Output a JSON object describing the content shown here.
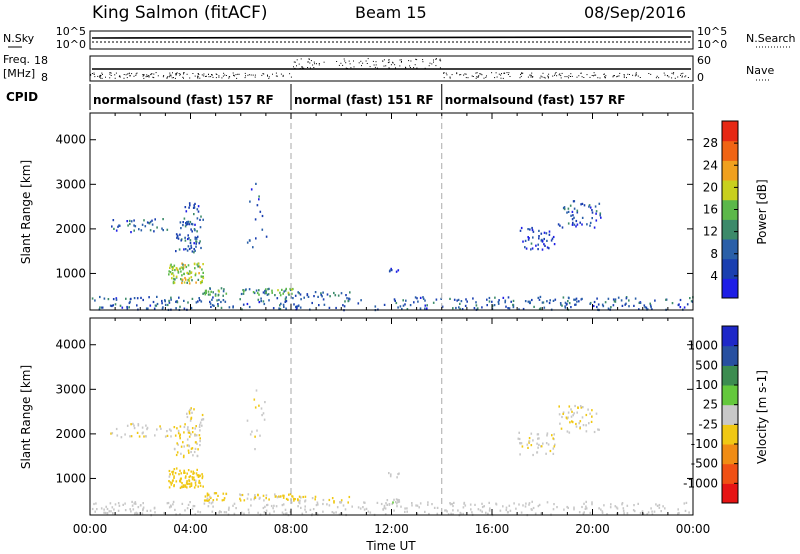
{
  "header": {
    "station": "King Salmon (fitACF)",
    "beam": "Beam 15",
    "date": "08/Sep/2016"
  },
  "status_panel": {
    "left_labels": {
      "nsky": "N.Sky",
      "freq_line1": "Freq.",
      "freq_line2": "[MHz]",
      "cpid": "CPID"
    },
    "right_labels": {
      "nsearch": "N.Search",
      "nave": "Nave"
    },
    "noise_ticks": {
      "top": "10^5",
      "bottom": "10^0"
    },
    "freq_ticks": {
      "top": "18",
      "bottom": "8"
    },
    "nave_ticks": {
      "top": "60",
      "bottom": "0"
    },
    "cpid_segments": [
      {
        "label": "normalsound (fast) 157 RF",
        "start_h": 0,
        "end_h": 8
      },
      {
        "label": "normal (fast) 151 RF",
        "start_h": 8,
        "end_h": 14
      },
      {
        "label": "normalsound (fast) 157 RF",
        "start_h": 14,
        "end_h": 24
      }
    ]
  },
  "chart_data": [
    {
      "type": "heatmap",
      "title": "",
      "xlabel": "",
      "ylabel": "Slant Range [km]",
      "xlim_hours": [
        0,
        24
      ],
      "ylim": [
        180,
        4600
      ],
      "y_ticks": [
        "1000",
        "2000",
        "3000",
        "4000"
      ],
      "mode_change_lines_h": [
        8,
        14
      ],
      "colorbar": {
        "label": "Power [dB]",
        "range": [
          0,
          32
        ],
        "ticks": [
          "4",
          "8",
          "12",
          "16",
          "20",
          "24",
          "28"
        ],
        "colors": [
          "#1e1ee6",
          "#1a3fb0",
          "#2a5fa8",
          "#3c8a6a",
          "#5cb84a",
          "#c8d01e",
          "#f0a01e",
          "#f06414",
          "#e62814"
        ]
      },
      "regions": [
        {
          "t0": 3.1,
          "t1": 4.5,
          "r0": 800,
          "r1": 1250,
          "value": 18,
          "density": 0.85
        },
        {
          "t0": 3.3,
          "t1": 4.4,
          "r0": 1500,
          "r1": 2200,
          "value": 8,
          "density": 0.45
        },
        {
          "t0": 3.7,
          "t1": 4.5,
          "r0": 2100,
          "r1": 2600,
          "value": 7,
          "density": 0.35
        },
        {
          "t0": 0.8,
          "t1": 3.2,
          "r0": 1950,
          "r1": 2250,
          "value": 8,
          "density": 0.3
        },
        {
          "t0": 4.4,
          "t1": 5.4,
          "r0": 520,
          "r1": 700,
          "value": 14,
          "density": 0.8
        },
        {
          "t0": 5.9,
          "t1": 7.1,
          "r0": 520,
          "r1": 680,
          "value": 12,
          "density": 0.75
        },
        {
          "t0": 7.2,
          "t1": 8.1,
          "r0": 520,
          "r1": 680,
          "value": 14,
          "density": 0.8
        },
        {
          "t0": 8.1,
          "t1": 10.4,
          "r0": 480,
          "r1": 620,
          "value": 10,
          "density": 0.4
        },
        {
          "t0": 0,
          "t1": 24,
          "r0": 200,
          "r1": 500,
          "value": 8,
          "density": 0.28
        },
        {
          "t0": 11.8,
          "t1": 12.4,
          "r0": 1050,
          "r1": 1150,
          "value": 6,
          "density": 0.6
        },
        {
          "t0": 17.0,
          "t1": 18.5,
          "r0": 1550,
          "r1": 2050,
          "value": 6,
          "density": 0.35
        },
        {
          "t0": 18.6,
          "t1": 20.3,
          "r0": 2050,
          "r1": 2650,
          "value": 7,
          "density": 0.3
        },
        {
          "t0": 6.2,
          "t1": 7.0,
          "r0": 1600,
          "r1": 3100,
          "value": 6,
          "density": 0.08
        }
      ]
    },
    {
      "type": "heatmap",
      "title": "",
      "xlabel": "Time UT",
      "ylabel": "Slant Range [km]",
      "xlim_hours": [
        0,
        24
      ],
      "ylim": [
        180,
        4600
      ],
      "y_ticks": [
        "1000",
        "2000",
        "3000",
        "4000"
      ],
      "x_ticks": [
        "00:00",
        "04:00",
        "08:00",
        "12:00",
        "16:00",
        "20:00",
        "00:00"
      ],
      "mode_change_lines_h": [
        8,
        14
      ],
      "colorbar": {
        "label": "Velocity [m s-1]",
        "range": [
          -1250,
          1250
        ],
        "ticks": [
          "1000",
          "500",
          "100",
          "25",
          "-25",
          "-100",
          "-500",
          "-1000"
        ],
        "colors": [
          "#e61414",
          "#f05014",
          "#f08c14",
          "#f0c814",
          "#c8c8c8",
          "#64c83c",
          "#3c8c50",
          "#2850a0",
          "#1e28c8"
        ]
      },
      "regions": [
        {
          "t0": 3.1,
          "t1": 4.5,
          "r0": 800,
          "r1": 1250,
          "value": -260,
          "density": 0.85
        },
        {
          "t0": 3.3,
          "t1": 4.4,
          "r0": 1500,
          "r1": 2200,
          "value": -150,
          "density": 0.45
        },
        {
          "t0": 3.7,
          "t1": 4.5,
          "r0": 2100,
          "r1": 2600,
          "value": -120,
          "density": 0.35
        },
        {
          "t0": 0.8,
          "t1": 3.2,
          "r0": 1950,
          "r1": 2250,
          "value": -60,
          "density": 0.3
        },
        {
          "t0": 4.4,
          "t1": 5.4,
          "r0": 520,
          "r1": 700,
          "value": -200,
          "density": 0.8
        },
        {
          "t0": 5.9,
          "t1": 7.1,
          "r0": 520,
          "r1": 680,
          "value": -150,
          "density": 0.75
        },
        {
          "t0": 7.2,
          "t1": 8.1,
          "r0": 520,
          "r1": 680,
          "value": -220,
          "density": 0.8
        },
        {
          "t0": 8.1,
          "t1": 10.4,
          "r0": 480,
          "r1": 620,
          "value": -180,
          "density": 0.4
        },
        {
          "t0": 0,
          "t1": 24,
          "r0": 200,
          "r1": 500,
          "value": 0,
          "density": 0.28
        },
        {
          "t0": 11.8,
          "t1": 12.4,
          "r0": 1050,
          "r1": 1150,
          "value": -40,
          "density": 0.6
        },
        {
          "t0": 11.6,
          "t1": 12.3,
          "r0": 420,
          "r1": 560,
          "value": 60,
          "density": 0.7
        },
        {
          "t0": 17.0,
          "t1": 18.5,
          "r0": 1550,
          "r1": 2050,
          "value": -70,
          "density": 0.35
        },
        {
          "t0": 18.6,
          "t1": 20.3,
          "r0": 2050,
          "r1": 2650,
          "value": -90,
          "density": 0.3
        },
        {
          "t0": 6.2,
          "t1": 7.0,
          "r0": 1600,
          "r1": 3100,
          "value": -50,
          "density": 0.08
        }
      ]
    }
  ]
}
